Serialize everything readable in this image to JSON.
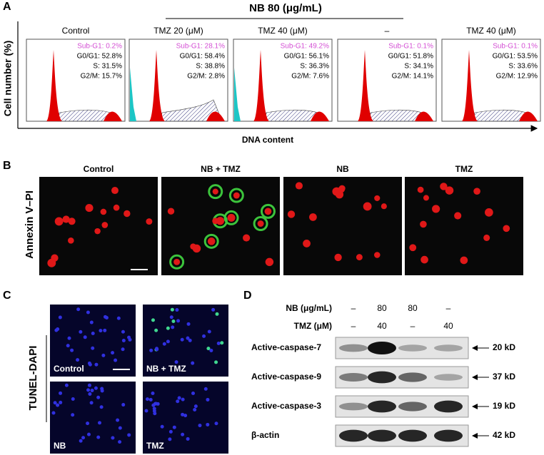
{
  "panelA": {
    "label": "A",
    "group_header": "NB 80 (μg/mL)",
    "y_label": "Cell number (%)",
    "x_label": "DNA content",
    "histograms": [
      {
        "title": "Control",
        "stats": [
          "Sub-G1: 0.2%",
          "G0/G1: 52.8%",
          "S: 31.5%",
          "G2/M: 15.7%"
        ]
      },
      {
        "title": "TMZ 20 (μM)",
        "stats": [
          "Sub-G1: 28.1%",
          "G0/G1: 58.4%",
          "S: 38.8%",
          "G2/M: 2.8%"
        ]
      },
      {
        "title": "TMZ 40 (μM)",
        "stats": [
          "Sub-G1: 49.2%",
          "G0/G1: 56.1%",
          "S: 36.3%",
          "G2/M: 7.6%"
        ]
      },
      {
        "title": "–",
        "stats": [
          "Sub-G1: 0.1%",
          "G0/G1: 51.8%",
          "S: 34.1%",
          "G2/M: 14.1%"
        ]
      },
      {
        "title": "TMZ 40 (μM)",
        "stats": [
          "Sub-G1: 0.1%",
          "G0/G1: 53.5%",
          "S: 33.6%",
          "G2/M: 12.9%"
        ]
      }
    ]
  },
  "panelB": {
    "label": "B",
    "y_label": "Annexin V–PI",
    "images": [
      "Control",
      "NB + TMZ",
      "NB",
      "TMZ"
    ]
  },
  "panelC": {
    "label": "C",
    "y_label": "TUNEL-DAPI",
    "images": [
      "Control",
      "NB + TMZ",
      "NB",
      "TMZ"
    ]
  },
  "panelD": {
    "label": "D",
    "conditions": [
      {
        "name": "NB (μg/mL)",
        "values": [
          "–",
          "80",
          "80",
          "–"
        ]
      },
      {
        "name": "TMZ (μM)",
        "values": [
          "–",
          "40",
          "–",
          "40"
        ]
      }
    ],
    "blots": [
      {
        "name": "Active-caspase-7",
        "size": "20 kD"
      },
      {
        "name": "Active-caspase-9",
        "size": "37 kD"
      },
      {
        "name": "Active-caspase-3",
        "size": "19 kD"
      },
      {
        "name": "β-actin",
        "size": "42 kD"
      }
    ]
  }
}
